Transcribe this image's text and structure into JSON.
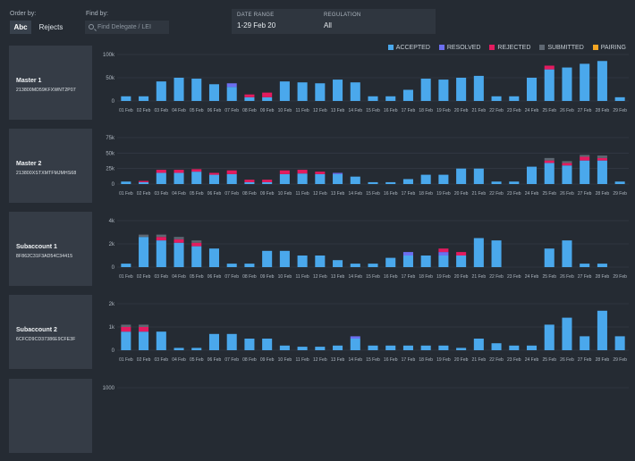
{
  "toolbar": {
    "order_label": "Order by:",
    "order_options": [
      "Abc",
      "Rejects"
    ],
    "find_label": "Find by:",
    "find_placeholder": "Find Delegate / LEI",
    "date_range_title": "DATE RANGE",
    "date_range_value": "1-29 Feb 20",
    "regulation_title": "REGULATION",
    "regulation_value": "All"
  },
  "legend": [
    {
      "label": "ACCEPTED",
      "color": "#4aa8ec"
    },
    {
      "label": "RESOLVED",
      "color": "#6c6ff0"
    },
    {
      "label": "REJECTED",
      "color": "#e31b5f"
    },
    {
      "label": "SUBMITTED",
      "color": "#5e6772"
    },
    {
      "label": "PAIRING",
      "color": "#f5a623"
    }
  ],
  "entities": [
    {
      "name": "Master 1",
      "id": "213800MD59KFXWNT2P07"
    },
    {
      "name": "Master 2",
      "id": "213800XSTXMTFMJMHS68"
    },
    {
      "name": "Subaccount 1",
      "id": "8F862C31F3AD54C34415"
    },
    {
      "name": "Subaccount 2",
      "id": "6CFCD9CD37386E9CFE3F"
    },
    {
      "name": "",
      "id": ""
    }
  ],
  "chart_data": [
    {
      "type": "bar",
      "stacked": true,
      "categories": [
        "01 Feb",
        "02 Feb",
        "03 Feb",
        "04 Feb",
        "05 Feb",
        "06 Feb",
        "07 Feb",
        "08 Feb",
        "09 Feb",
        "10 Feb",
        "11 Feb",
        "12 Feb",
        "13 Feb",
        "14 Feb",
        "15 Feb",
        "16 Feb",
        "17 Feb",
        "18 Feb",
        "19 Feb",
        "20 Feb",
        "21 Feb",
        "22 Feb",
        "23 Feb",
        "24 Feb",
        "25 Feb",
        "26 Feb",
        "27 Feb",
        "28 Feb",
        "29 Feb"
      ],
      "yticks": [
        "0",
        "50k",
        "100k"
      ],
      "ylim": [
        0,
        100000
      ],
      "series": [
        {
          "name": "ACCEPTED",
          "values": [
            10000,
            10000,
            42000,
            50000,
            48000,
            36000,
            30000,
            8000,
            8000,
            42000,
            40000,
            38000,
            46000,
            40000,
            10000,
            10000,
            24000,
            48000,
            46000,
            50000,
            54000,
            10000,
            10000,
            50000,
            68000,
            72000,
            80000,
            86000,
            8000
          ]
        },
        {
          "name": "RESOLVED",
          "values": [
            0,
            0,
            0,
            0,
            0,
            0,
            8000,
            0,
            0,
            0,
            0,
            0,
            0,
            0,
            0,
            0,
            0,
            0,
            0,
            0,
            0,
            0,
            0,
            0,
            0,
            0,
            0,
            0,
            0
          ]
        },
        {
          "name": "REJECTED",
          "values": [
            0,
            0,
            0,
            0,
            0,
            0,
            0,
            6000,
            10000,
            0,
            0,
            0,
            0,
            0,
            0,
            0,
            0,
            0,
            0,
            0,
            0,
            0,
            0,
            0,
            8000,
            0,
            0,
            0,
            0
          ]
        },
        {
          "name": "SUBMITTED",
          "values": [
            0,
            0,
            0,
            0,
            0,
            0,
            0,
            0,
            0,
            0,
            0,
            0,
            0,
            0,
            0,
            0,
            0,
            0,
            0,
            0,
            0,
            0,
            0,
            0,
            0,
            0,
            0,
            0,
            0
          ]
        },
        {
          "name": "PAIRING",
          "values": [
            0,
            0,
            0,
            0,
            0,
            0,
            0,
            0,
            0,
            0,
            0,
            0,
            0,
            0,
            0,
            0,
            0,
            0,
            0,
            0,
            0,
            0,
            0,
            0,
            0,
            0,
            0,
            0,
            0
          ]
        }
      ]
    },
    {
      "type": "bar",
      "stacked": true,
      "categories": [
        "01 Feb",
        "02 Feb",
        "03 Feb",
        "04 Feb",
        "05 Feb",
        "06 Feb",
        "07 Feb",
        "08 Feb",
        "09 Feb",
        "10 Feb",
        "11 Feb",
        "12 Feb",
        "13 Feb",
        "14 Feb",
        "15 Feb",
        "16 Feb",
        "17 Feb",
        "18 Feb",
        "19 Feb",
        "20 Feb",
        "21 Feb",
        "22 Feb",
        "23 Feb",
        "24 Feb",
        "25 Feb",
        "26 Feb",
        "27 Feb",
        "28 Feb",
        "29 Feb"
      ],
      "yticks": [
        "0",
        "25k",
        "50k",
        "75k"
      ],
      "ylim": [
        0,
        75000
      ],
      "series": [
        {
          "name": "ACCEPTED",
          "values": [
            4000,
            3000,
            18000,
            18000,
            20000,
            15000,
            16000,
            3000,
            3000,
            16000,
            17000,
            16000,
            16000,
            12000,
            3000,
            3000,
            8000,
            15000,
            15000,
            25000,
            25000,
            4000,
            4000,
            28000,
            34000,
            30000,
            38000,
            38000,
            4000
          ]
        },
        {
          "name": "RESOLVED",
          "values": [
            0,
            0,
            0,
            0,
            0,
            0,
            0,
            0,
            0,
            0,
            0,
            0,
            2000,
            0,
            0,
            0,
            0,
            0,
            0,
            0,
            0,
            0,
            0,
            0,
            0,
            0,
            0,
            0,
            0
          ]
        },
        {
          "name": "REJECTED",
          "values": [
            0,
            2000,
            5000,
            5000,
            4000,
            3000,
            6000,
            4000,
            4000,
            6000,
            6000,
            4000,
            0,
            0,
            0,
            0,
            0,
            0,
            0,
            0,
            0,
            0,
            0,
            0,
            4000,
            4000,
            6000,
            4000,
            0
          ]
        },
        {
          "name": "SUBMITTED",
          "values": [
            0,
            0,
            0,
            0,
            0,
            0,
            0,
            0,
            0,
            0,
            0,
            0,
            0,
            0,
            0,
            0,
            0,
            0,
            0,
            0,
            0,
            0,
            0,
            0,
            4000,
            3000,
            3000,
            4000,
            0
          ]
        },
        {
          "name": "PAIRING",
          "values": [
            0,
            0,
            0,
            0,
            0,
            0,
            0,
            0,
            0,
            0,
            0,
            0,
            0,
            0,
            0,
            0,
            0,
            0,
            0,
            0,
            0,
            0,
            0,
            0,
            0,
            0,
            0,
            0,
            0
          ]
        }
      ]
    },
    {
      "type": "bar",
      "stacked": true,
      "categories": [
        "01 Feb",
        "02 Feb",
        "03 Feb",
        "04 Feb",
        "05 Feb",
        "06 Feb",
        "07 Feb",
        "08 Feb",
        "09 Feb",
        "10 Feb",
        "11 Feb",
        "12 Feb",
        "13 Feb",
        "14 Feb",
        "15 Feb",
        "16 Feb",
        "17 Feb",
        "18 Feb",
        "19 Feb",
        "20 Feb",
        "21 Feb",
        "22 Feb",
        "23 Feb",
        "24 Feb",
        "25 Feb",
        "26 Feb",
        "27 Feb",
        "28 Feb",
        "29 Feb"
      ],
      "yticks": [
        "0",
        "2k",
        "4k"
      ],
      "ylim": [
        0,
        4000
      ],
      "series": [
        {
          "name": "ACCEPTED",
          "values": [
            300,
            2600,
            2300,
            2100,
            1800,
            1600,
            300,
            300,
            1400,
            1400,
            1000,
            1000,
            600,
            300,
            300,
            800,
            1000,
            1000,
            1000,
            1000,
            2500,
            2300,
            0,
            0,
            1600,
            2300,
            300,
            300,
            0
          ]
        },
        {
          "name": "RESOLVED",
          "values": [
            0,
            0,
            0,
            0,
            0,
            0,
            0,
            0,
            0,
            0,
            0,
            0,
            0,
            0,
            0,
            0,
            300,
            0,
            300,
            0,
            0,
            0,
            0,
            0,
            0,
            0,
            0,
            0,
            0
          ]
        },
        {
          "name": "REJECTED",
          "values": [
            0,
            0,
            300,
            300,
            300,
            0,
            0,
            0,
            0,
            0,
            0,
            0,
            0,
            0,
            0,
            0,
            0,
            0,
            300,
            300,
            0,
            0,
            0,
            0,
            0,
            0,
            0,
            0,
            0
          ]
        },
        {
          "name": "SUBMITTED",
          "values": [
            0,
            200,
            200,
            200,
            200,
            0,
            0,
            0,
            0,
            0,
            0,
            0,
            0,
            0,
            0,
            0,
            0,
            0,
            0,
            0,
            0,
            0,
            0,
            0,
            0,
            0,
            0,
            0,
            0
          ]
        },
        {
          "name": "PAIRING",
          "values": [
            0,
            0,
            0,
            0,
            0,
            0,
            0,
            0,
            0,
            0,
            0,
            0,
            0,
            0,
            0,
            0,
            0,
            0,
            0,
            0,
            0,
            0,
            0,
            0,
            0,
            0,
            0,
            0,
            0
          ]
        }
      ]
    },
    {
      "type": "bar",
      "stacked": true,
      "categories": [
        "01 Feb",
        "02 Feb",
        "03 Feb",
        "04 Feb",
        "05 Feb",
        "06 Feb",
        "07 Feb",
        "08 Feb",
        "09 Feb",
        "10 Feb",
        "11 Feb",
        "12 Feb",
        "13 Feb",
        "14 Feb",
        "15 Feb",
        "16 Feb",
        "17 Feb",
        "18 Feb",
        "19 Feb",
        "20 Feb",
        "21 Feb",
        "22 Feb",
        "23 Feb",
        "24 Feb",
        "25 Feb",
        "26 Feb",
        "27 Feb",
        "28 Feb",
        "29 Feb"
      ],
      "yticks": [
        "0",
        "1k",
        "2k"
      ],
      "ylim": [
        0,
        2000
      ],
      "series": [
        {
          "name": "ACCEPTED",
          "values": [
            800,
            800,
            800,
            100,
            100,
            700,
            700,
            500,
            500,
            200,
            150,
            150,
            200,
            500,
            200,
            200,
            200,
            200,
            200,
            100,
            500,
            300,
            200,
            200,
            1100,
            1400,
            600,
            1700,
            600
          ]
        },
        {
          "name": "RESOLVED",
          "values": [
            0,
            0,
            0,
            0,
            0,
            0,
            0,
            0,
            0,
            0,
            0,
            0,
            0,
            100,
            0,
            0,
            0,
            0,
            0,
            0,
            0,
            0,
            0,
            0,
            0,
            0,
            0,
            0,
            0
          ]
        },
        {
          "name": "REJECTED",
          "values": [
            200,
            200,
            0,
            0,
            0,
            0,
            0,
            0,
            0,
            0,
            0,
            0,
            0,
            0,
            0,
            0,
            0,
            0,
            0,
            0,
            0,
            0,
            0,
            0,
            0,
            0,
            0,
            0,
            0
          ]
        },
        {
          "name": "SUBMITTED",
          "values": [
            100,
            100,
            0,
            0,
            0,
            0,
            0,
            0,
            0,
            0,
            0,
            0,
            0,
            0,
            0,
            0,
            0,
            0,
            0,
            0,
            0,
            0,
            0,
            0,
            0,
            0,
            0,
            0,
            0
          ]
        },
        {
          "name": "PAIRING",
          "values": [
            0,
            0,
            0,
            0,
            0,
            0,
            0,
            0,
            0,
            0,
            0,
            0,
            0,
            0,
            0,
            0,
            0,
            0,
            0,
            0,
            0,
            0,
            0,
            0,
            0,
            0,
            0,
            0,
            0
          ]
        }
      ]
    },
    {
      "type": "bar",
      "stacked": true,
      "categories": [],
      "yticks": [
        "1000"
      ],
      "ylim": [
        0,
        1000
      ],
      "series": []
    }
  ]
}
